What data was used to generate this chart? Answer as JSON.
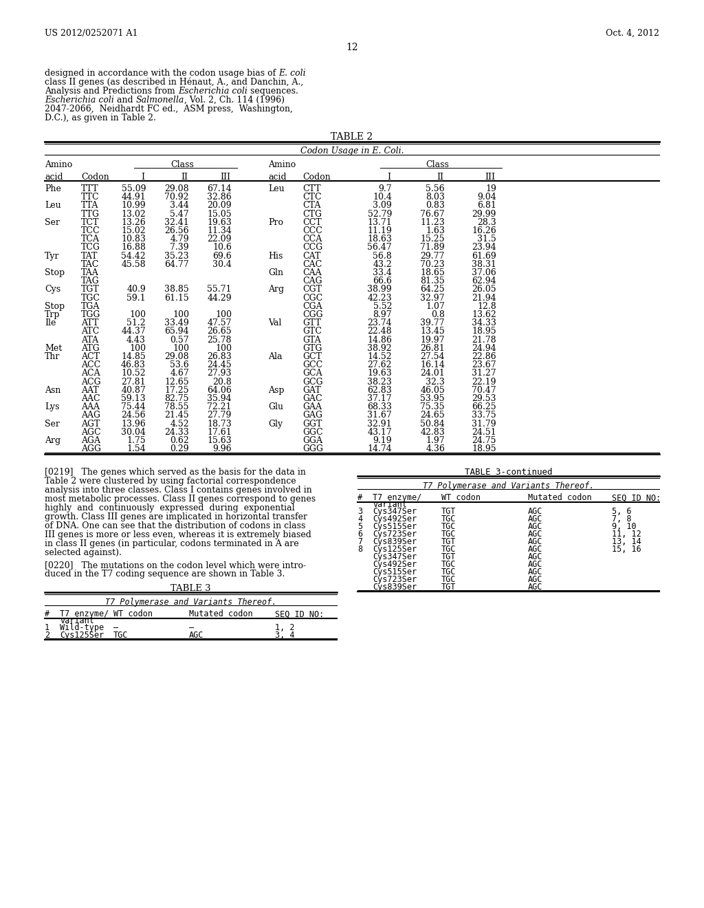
{
  "header_left": "US 2012/0252071 A1",
  "header_right": "Oct. 4, 2012",
  "page_number": "12",
  "table2_title": "TABLE 2",
  "table2_subtitle": "Codon Usage in E. Coli.",
  "table2_data": [
    [
      "Phe",
      "TTT",
      "55.09",
      "29.08",
      "67.14",
      "Leu",
      "CTT",
      "9.7",
      "5.56",
      "19"
    ],
    [
      "",
      "TTC",
      "44.91",
      "70.92",
      "32.86",
      "",
      "CTC",
      "10.4",
      "8.03",
      "9.04"
    ],
    [
      "Leu",
      "TTA",
      "10.99",
      "3.44",
      "20.09",
      "",
      "CTA",
      "3.09",
      "0.83",
      "6.81"
    ],
    [
      "",
      "TTG",
      "13.02",
      "5.47",
      "15.05",
      "",
      "CTG",
      "52.79",
      "76.67",
      "29.99"
    ],
    [
      "Ser",
      "TCT",
      "13.26",
      "32.41",
      "19.63",
      "Pro",
      "CCT",
      "13.71",
      "11.23",
      "28.3"
    ],
    [
      "",
      "TCC",
      "15.02",
      "26.56",
      "11.34",
      "",
      "CCC",
      "11.19",
      "1.63",
      "16.26"
    ],
    [
      "",
      "TCA",
      "10.83",
      "4.79",
      "22.09",
      "",
      "CCA",
      "18.63",
      "15.25",
      "31.5"
    ],
    [
      "",
      "TCG",
      "16.88",
      "7.39",
      "10.6",
      "",
      "CCG",
      "56.47",
      "71.89",
      "23.94"
    ],
    [
      "Tyr",
      "TAT",
      "54.42",
      "35.23",
      "69.6",
      "His",
      "CAT",
      "56.8",
      "29.77",
      "61.69"
    ],
    [
      "",
      "TAC",
      "45.58",
      "64.77",
      "30.4",
      "",
      "CAC",
      "43.2",
      "70.23",
      "38.31"
    ],
    [
      "Stop",
      "TAA",
      "",
      "",
      "",
      "Gln",
      "CAA",
      "33.4",
      "18.65",
      "37.06"
    ],
    [
      "",
      "TAG",
      "",
      "",
      "",
      "",
      "CAG",
      "66.6",
      "81.35",
      "62.94"
    ],
    [
      "Cys",
      "TGT",
      "40.9",
      "38.85",
      "55.71",
      "Arg",
      "CGT",
      "38.99",
      "64.25",
      "26.05"
    ],
    [
      "",
      "TGC",
      "59.1",
      "61.15",
      "44.29",
      "",
      "CGC",
      "42.23",
      "32.97",
      "21.94"
    ],
    [
      "Stop",
      "TGA",
      "",
      "",
      "",
      "",
      "CGA",
      "5.52",
      "1.07",
      "12.8"
    ],
    [
      "Trp",
      "TGG",
      "100",
      "100",
      "100",
      "",
      "CGG",
      "8.97",
      "0.8",
      "13.62"
    ],
    [
      "Ile",
      "ATT",
      "51.2",
      "33.49",
      "47.57",
      "Val",
      "GTT",
      "23.74",
      "39.77",
      "34.33"
    ],
    [
      "",
      "ATC",
      "44.37",
      "65.94",
      "26.65",
      "",
      "GTC",
      "22.48",
      "13.45",
      "18.95"
    ],
    [
      "",
      "ATA",
      "4.43",
      "0.57",
      "25.78",
      "",
      "GTA",
      "14.86",
      "19.97",
      "21.78"
    ],
    [
      "Met",
      "ATG",
      "100",
      "100",
      "100",
      "",
      "GTG",
      "38.92",
      "26.81",
      "24.94"
    ],
    [
      "Thr",
      "ACT",
      "14.85",
      "29.08",
      "26.83",
      "Ala",
      "GCT",
      "14.52",
      "27.54",
      "22.86"
    ],
    [
      "",
      "ACC",
      "46.83",
      "53.6",
      "24.45",
      "",
      "GCC",
      "27.62",
      "16.14",
      "23.67"
    ],
    [
      "",
      "ACA",
      "10.52",
      "4.67",
      "27.93",
      "",
      "GCA",
      "19.63",
      "24.01",
      "31.27"
    ],
    [
      "",
      "ACG",
      "27.81",
      "12.65",
      "20.8",
      "",
      "GCG",
      "38.23",
      "32.3",
      "22.19"
    ],
    [
      "Asn",
      "AAT",
      "40.87",
      "17.25",
      "64.06",
      "Asp",
      "GAT",
      "62.83",
      "46.05",
      "70.47"
    ],
    [
      "",
      "AAC",
      "59.13",
      "82.75",
      "35.94",
      "",
      "GAC",
      "37.17",
      "53.95",
      "29.53"
    ],
    [
      "Lys",
      "AAA",
      "75.44",
      "78.55",
      "72.21",
      "Glu",
      "GAA",
      "68.33",
      "75.35",
      "66.25"
    ],
    [
      "",
      "AAG",
      "24.56",
      "21.45",
      "27.79",
      "",
      "GAG",
      "31.67",
      "24.65",
      "33.75"
    ],
    [
      "Ser",
      "AGT",
      "13.96",
      "4.52",
      "18.73",
      "Gly",
      "GGT",
      "32.91",
      "50.84",
      "31.79"
    ],
    [
      "",
      "AGC",
      "30.04",
      "24.33",
      "17.61",
      "",
      "GGC",
      "43.17",
      "42.83",
      "24.51"
    ],
    [
      "Arg",
      "AGA",
      "1.75",
      "0.62",
      "15.63",
      "",
      "GGA",
      "9.19",
      "1.97",
      "24.75"
    ],
    [
      "",
      "AGG",
      "1.54",
      "0.29",
      "9.96",
      "",
      "GGG",
      "14.74",
      "4.36",
      "18.95"
    ]
  ],
  "para0219_lines": [
    "[0219]   The genes which served as the basis for the data in",
    "Table 2 were clustered by using factorial correspondence",
    "analysis into three classes. Class I contains genes involved in",
    "most metabolic processes. Class II genes correspond to genes",
    "highly  and  continuously  expressed  during  exponential",
    "growth. Class III genes are implicated in horizontal transfer",
    "of DNA. One can see that the distribution of codons in class",
    "III genes is more or less even, whereas it is extremely biased",
    "in class II genes (in particular, codons terminated in A are",
    "selected against)."
  ],
  "para0220_lines": [
    "[0220]   The mutations on the codon level which were intro-",
    "duced in the T7 coding sequence are shown in Table 3."
  ],
  "table3_title": "TABLE 3",
  "table3_subtitle": "T7 Polymerase and Variants Thereof.",
  "table3_data": [
    [
      "1",
      "Wild-type",
      "—",
      "—",
      "1, 2"
    ],
    [
      "2",
      "Cys125Ser",
      "TGC",
      "AGC",
      "3, 4"
    ]
  ],
  "table3cont_title": "TABLE 3-continued",
  "table3cont_subtitle": "T7 Polymerase and Variants Thereof.",
  "table3cont_data": [
    [
      "3",
      "Cys347Ser",
      "TGT",
      "AGC",
      "5, 6"
    ],
    [
      "4",
      "Cys492Ser",
      "TGC",
      "AGC",
      "7, 8"
    ],
    [
      "5",
      "Cys515Ser",
      "TGC",
      "AGC",
      "9, 10"
    ],
    [
      "6",
      "Cys723Ser",
      "TGC",
      "AGC",
      "11, 12"
    ],
    [
      "7",
      "Cys839Ser",
      "TGT",
      "AGC",
      "13, 14"
    ],
    [
      "8",
      "Cys125Ser\nCys347Ser\nCys492Ser\nCys515Ser\nCys723Ser\nCys839Ser",
      "TGC\nTGT\nTGC\nTGC\nTGC\nTGT",
      "AGC\nAGC\nAGC\nAGC\nAGC\nAGC",
      "15, 16"
    ]
  ],
  "intro_lines": [
    [
      [
        "designed in accordance with the codon usage bias of ",
        false
      ],
      [
        "E. coli",
        true
      ]
    ],
    [
      [
        "class II genes (as described in Hénaut, A., and Danchin, A.,",
        false
      ]
    ],
    [
      [
        "Analysis and Predictions from ",
        false
      ],
      [
        "Escherichia coli",
        true
      ],
      [
        " sequences.",
        false
      ]
    ],
    [
      [
        "Escherichia coli",
        true
      ],
      [
        " and ",
        false
      ],
      [
        "Salmonella",
        true
      ],
      [
        ", Vol. 2, Ch. 114 (1996)",
        false
      ]
    ],
    [
      [
        "2047-2066,  Neidhardt FC ed.,  ASM press,  Washington,",
        false
      ]
    ],
    [
      [
        "D.C.), as given in Table 2.",
        false
      ]
    ]
  ]
}
